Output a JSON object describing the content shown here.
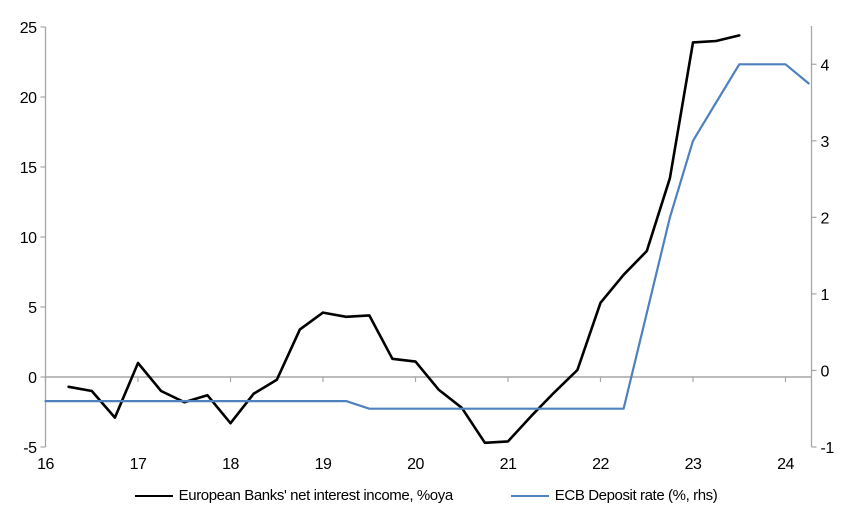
{
  "page": {
    "background": "#ffffff"
  },
  "colors": {
    "nii_line": "#000000",
    "ecb_line": "#4e81bd",
    "axis": "#a6a6a6",
    "tick_label": "#000000"
  },
  "chart_data": {
    "type": "line",
    "title": "",
    "xlabel": "",
    "ylabel_left": "",
    "ylabel_right": "",
    "grid": "zero-line-only",
    "legend_position": "bottom-center",
    "x_ticks": [
      16,
      17,
      18,
      19,
      20,
      21,
      22,
      23,
      24
    ],
    "left_axis": {
      "ticks": [
        25,
        20,
        15,
        10,
        5,
        0,
        -5
      ],
      "ylim": [
        -5,
        25
      ]
    },
    "right_axis": {
      "ticks": [
        4,
        3,
        2,
        1,
        0,
        -1
      ],
      "ylim": [
        -1,
        4.5
      ]
    },
    "series": [
      {
        "name": "European Banks' net interest income, %oya",
        "axis": "left",
        "color_key": "nii_line",
        "stroke_width": 2.6,
        "x": [
          16.25,
          16.5,
          16.75,
          17.0,
          17.25,
          17.5,
          17.75,
          18.0,
          18.25,
          18.5,
          18.75,
          19.0,
          19.25,
          19.5,
          19.75,
          20.0,
          20.25,
          20.5,
          20.75,
          21.0,
          21.25,
          21.5,
          21.75,
          22.0,
          22.25,
          22.5,
          22.75,
          23.0,
          23.25,
          23.5
        ],
        "values": [
          -0.7,
          -1.0,
          -2.9,
          1.0,
          -1.0,
          -1.8,
          -1.3,
          -3.3,
          -1.2,
          -0.2,
          3.4,
          4.6,
          4.3,
          4.4,
          1.3,
          1.1,
          -0.9,
          -2.2,
          -4.7,
          -4.6,
          -2.8,
          -1.1,
          0.5,
          5.3,
          7.3,
          9.0,
          14.2,
          23.9,
          24.0,
          24.4
        ]
      },
      {
        "name": "ECB Deposit rate (%, rhs)",
        "axis": "right",
        "color_key": "ecb_line",
        "stroke_width": 2.2,
        "x": [
          16.0,
          16.25,
          16.5,
          16.75,
          17.0,
          17.25,
          17.5,
          17.75,
          18.0,
          18.25,
          18.5,
          18.75,
          19.0,
          19.25,
          19.5,
          19.75,
          20.0,
          20.25,
          20.5,
          20.75,
          21.0,
          21.25,
          21.5,
          21.75,
          22.0,
          22.25,
          22.5,
          22.75,
          23.0,
          23.25,
          23.5,
          23.75,
          24.0,
          24.25
        ],
        "values": [
          -0.4,
          -0.4,
          -0.4,
          -0.4,
          -0.4,
          -0.4,
          -0.4,
          -0.4,
          -0.4,
          -0.4,
          -0.4,
          -0.4,
          -0.4,
          -0.4,
          -0.5,
          -0.5,
          -0.5,
          -0.5,
          -0.5,
          -0.5,
          -0.5,
          -0.5,
          -0.5,
          -0.5,
          -0.5,
          -0.5,
          0.75,
          2.0,
          3.0,
          3.5,
          4.0,
          4.0,
          4.0,
          3.75
        ]
      }
    ]
  }
}
